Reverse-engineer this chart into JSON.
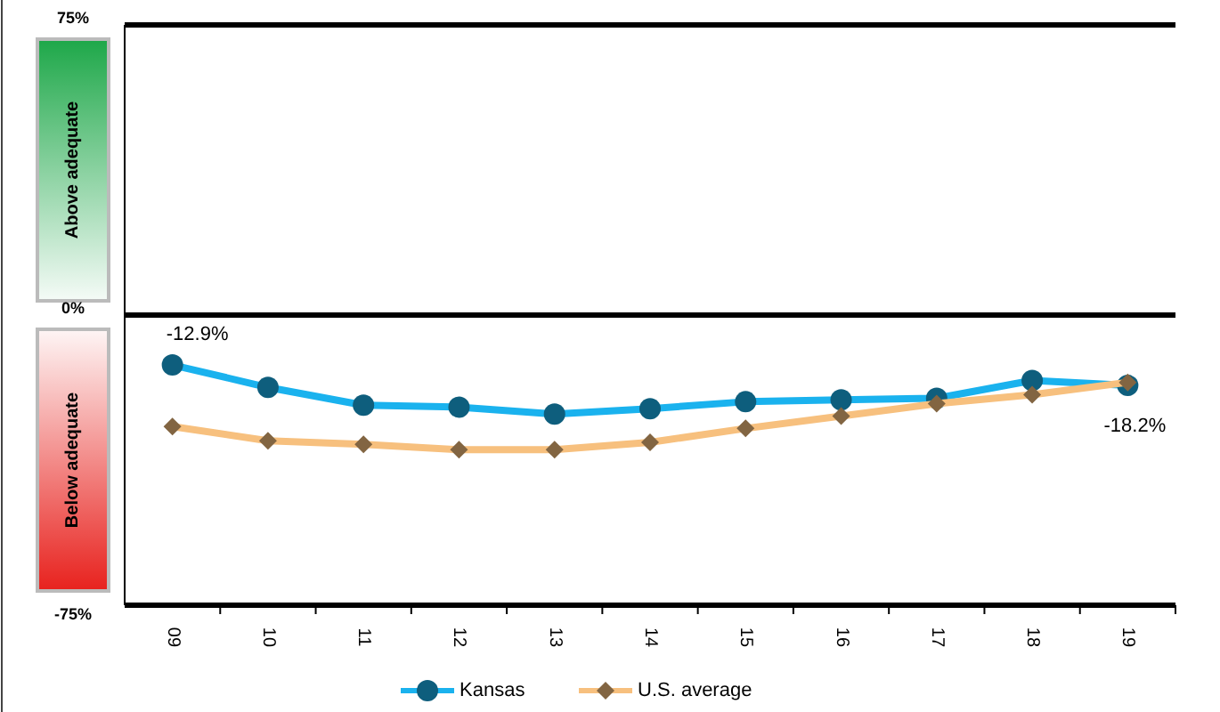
{
  "chart_data": {
    "type": "line",
    "categories": [
      "09",
      "10",
      "11",
      "12",
      "13",
      "14",
      "15",
      "16",
      "17",
      "18",
      "19"
    ],
    "series": [
      {
        "name": "Kansas",
        "color": "#1ab2ee",
        "marker": "circle",
        "values": [
          -12.9,
          -18.7,
          -23.3,
          -23.8,
          -25.6,
          -24.2,
          -22.4,
          -21.9,
          -21.5,
          -16.9,
          -18.2
        ],
        "value_labels": [
          "-12.9%",
          null,
          null,
          null,
          null,
          null,
          null,
          null,
          null,
          null,
          "-18.2%"
        ]
      },
      {
        "name": "U.S. average",
        "color": "#f7c07e",
        "marker": "diamond",
        "values": [
          -28.8,
          -32.5,
          -33.4,
          -34.8,
          -34.8,
          -32.9,
          -29.3,
          -26.1,
          -22.9,
          -20.6,
          -17.4
        ]
      }
    ],
    "ylim": [
      -75,
      75
    ],
    "yticks": [
      {
        "value": 75,
        "label": "75%"
      },
      {
        "value": 0,
        "label": "0%"
      },
      {
        "value": -75,
        "label": "-75%"
      }
    ],
    "annotations": [
      "Above adequate",
      "Below adequate"
    ],
    "grid": "y",
    "legend": "bottom"
  }
}
